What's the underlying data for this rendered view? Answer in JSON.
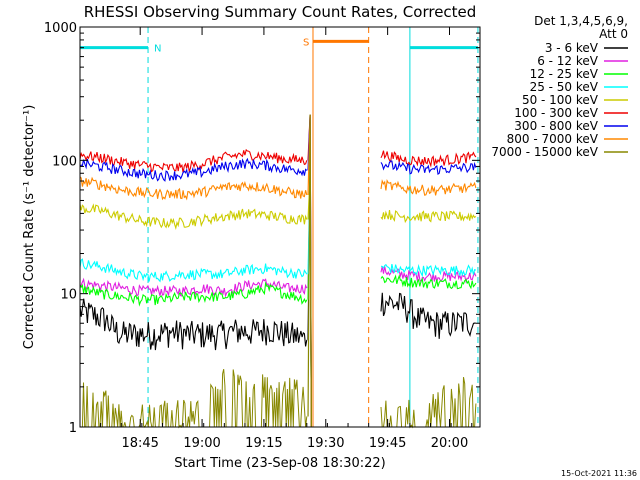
{
  "chart_data": {
    "type": "line",
    "title": "RHESSI Observing Summary Count Rates, Corrected",
    "xlabel": "Start Time (23-Sep-08 18:30:22)",
    "ylabel": "Corrected Count Rate (s⁻¹ detector⁻¹)",
    "x_unit": "minutes after 18:30:22",
    "xlim": [
      0,
      97
    ],
    "ylim": [
      1,
      1000
    ],
    "yscale": "log",
    "x_tick_labels": [
      "18:45",
      "19:00",
      "19:15",
      "19:30",
      "19:45",
      "20:00"
    ],
    "x_tick_values": [
      14.6,
      29.6,
      44.6,
      59.6,
      74.6,
      89.6
    ],
    "y_tick_labels": [
      "1",
      "10",
      "100",
      "1000"
    ],
    "y_tick_values": [
      1,
      10,
      100,
      1000
    ],
    "legend_header": [
      "Det 1,3,4,5,6,9,",
      "Att 0"
    ],
    "legend_position": "right",
    "series": [
      {
        "name": "3 - 6 keV",
        "color": "#000000",
        "segments": [
          {
            "x": [
              0,
              3,
              6,
              8,
              10,
              12,
              14,
              18,
              22,
              26,
              30,
              34,
              38,
              42,
              46,
              50,
              53,
              55
            ],
            "y": [
              7.5,
              7,
              6.5,
              5.5,
              5,
              5,
              5,
              5,
              5.2,
              5,
              5,
              5,
              5.3,
              5.2,
              5.5,
              5,
              4.8,
              4.5
            ]
          },
          {
            "x": [
              73,
              76,
              79,
              82,
              85,
              88,
              91,
              94,
              96
            ],
            "y": [
              9,
              8.5,
              8,
              6.5,
              6,
              6,
              6,
              6.2,
              6
            ]
          }
        ]
      },
      {
        "name": "6 - 12 keV",
        "color": "#e020e0",
        "segments": [
          {
            "x": [
              0,
              5,
              10,
              15,
              20,
              25,
              30,
              35,
              40,
              45,
              50,
              55
            ],
            "y": [
              12,
              11.5,
              11,
              10.5,
              10.5,
              10.5,
              11,
              10.5,
              11.5,
              12,
              11,
              11
            ]
          },
          {
            "x": [
              73,
              78,
              83,
              88,
              93,
              96
            ],
            "y": [
              15,
              14,
              13.5,
              13.5,
              13.5,
              13.5
            ]
          }
        ]
      },
      {
        "name": "12 - 25 keV",
        "color": "#00ff00",
        "segments": [
          {
            "x": [
              0,
              5,
              10,
              15,
              20,
              25,
              30,
              35,
              40,
              45,
              50,
              55
            ],
            "y": [
              11,
              10,
              9.5,
              9,
              9,
              9.5,
              9.5,
              9.5,
              10,
              11,
              10,
              9
            ]
          },
          {
            "x": [
              73,
              78,
              83,
              88,
              93,
              96
            ],
            "y": [
              13,
              12.5,
              12,
              12,
              12,
              12
            ]
          }
        ]
      },
      {
        "name": "25 - 50 keV",
        "color": "#00ffff",
        "segments": [
          {
            "x": [
              0,
              5,
              10,
              15,
              20,
              25,
              30,
              35,
              40,
              45,
              50,
              55
            ],
            "y": [
              17,
              16,
              14.5,
              13.5,
              13.5,
              14,
              14,
              14,
              15,
              15.5,
              14.5,
              14
            ]
          },
          {
            "x": [
              73,
              78,
              83,
              88,
              93,
              96
            ],
            "y": [
              16,
              15,
              15,
              15,
              15,
              15
            ]
          }
        ]
      },
      {
        "name": "50 - 100 keV",
        "color": "#cccc00",
        "segments": [
          {
            "x": [
              0,
              5,
              10,
              15,
              20,
              25,
              30,
              35,
              40,
              45,
              50,
              55
            ],
            "y": [
              44,
              42,
              38,
              35,
              34,
              34,
              36,
              38,
              40,
              39,
              37,
              36
            ]
          },
          {
            "x": [
              73,
              78,
              83,
              88,
              93,
              96
            ],
            "y": [
              40,
              38,
              38,
              38,
              38,
              38
            ]
          }
        ]
      },
      {
        "name": "100 - 300 keV",
        "color": "#ee0000",
        "segments": [
          {
            "x": [
              0,
              5,
              10,
              15,
              20,
              25,
              30,
              35,
              40,
              45,
              50,
              55
            ],
            "y": [
              110,
              105,
              97,
              92,
              88,
              88,
              95,
              105,
              112,
              108,
              102,
              100
            ]
          },
          {
            "x": [
              73,
              78,
              83,
              88,
              93,
              96
            ],
            "y": [
              112,
              102,
              99,
              100,
              104,
              106
            ]
          }
        ]
      },
      {
        "name": "300 - 800 keV",
        "color": "#0000ee",
        "segments": [
          {
            "x": [
              0,
              5,
              10,
              15,
              20,
              25,
              30,
              35,
              40,
              45,
              50,
              55
            ],
            "y": [
              96,
              90,
              84,
              79,
              77,
              78,
              82,
              90,
              95,
              92,
              86,
              84
            ]
          },
          {
            "x": [
              73,
              78,
              83,
              88,
              93,
              96
            ],
            "y": [
              95,
              88,
              85,
              86,
              88,
              88
            ]
          }
        ]
      },
      {
        "name": "800 - 7000 keV",
        "color": "#ff8800",
        "segments": [
          {
            "x": [
              0,
              5,
              10,
              15,
              20,
              25,
              30,
              35,
              40,
              45,
              50,
              55
            ],
            "y": [
              70,
              66,
              60,
              57,
              56,
              56,
              58,
              63,
              65,
              63,
              58,
              55
            ]
          },
          {
            "x": [
              73,
              78,
              83,
              88,
              93,
              96
            ],
            "y": [
              66,
              62,
              60,
              60,
              62,
              62
            ]
          }
        ]
      },
      {
        "name": "7000 - 15000 keV",
        "color": "#888800",
        "segments": [
          {
            "x": [
              0,
              4,
              8,
              12,
              16,
              20,
              24,
              28,
              32,
              36,
              40,
              44,
              48,
              52,
              55
            ],
            "y": [
              1.6,
              1.4,
              1,
              1,
              1,
              1,
              1,
              1,
              1.5,
              1.8,
              1.5,
              1.6,
              1.4,
              1.5,
              1.2
            ]
          },
          {
            "x": [
              73,
              78,
              83,
              88,
              93,
              96
            ],
            "y": [
              1,
              1,
              1,
              1.3,
              1.5,
              1.5
            ]
          }
        ]
      }
    ],
    "spike": {
      "x": 55.8,
      "y_peak": 220
    },
    "intervals": [
      {
        "label": "N",
        "color": "#00dddd",
        "x0": 0,
        "x1": 16.5,
        "y": 700
      },
      {
        "label": "",
        "color": "#00dddd",
        "x0": 80,
        "x1": 96.5,
        "y": 700
      },
      {
        "label": "S",
        "color": "#ff7700",
        "x0": 56.5,
        "x1": 70,
        "y": 780
      }
    ],
    "attenuator_lines": [
      {
        "x": 16.5,
        "color": "#00dddd",
        "style": "dashed"
      },
      {
        "x": 80,
        "color": "#00dddd",
        "style": "solid"
      },
      {
        "x": 96.5,
        "color": "#00dddd",
        "style": "dashed"
      },
      {
        "x": 56.5,
        "color": "#ff7700",
        "style": "solid"
      },
      {
        "x": 70,
        "color": "#ff7700",
        "style": "dashed"
      }
    ],
    "footer_timestamp": "15-Oct-2021 11:36"
  }
}
